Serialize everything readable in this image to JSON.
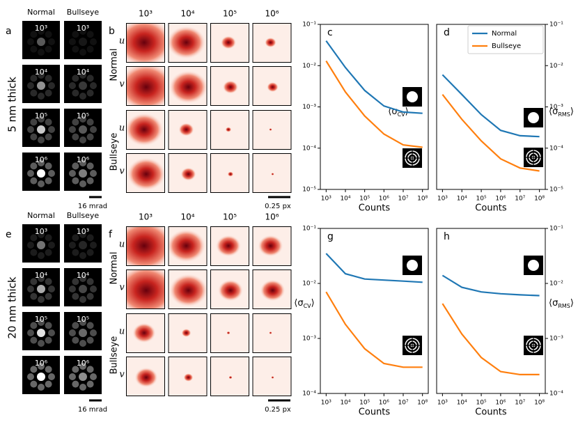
{
  "row_labels": [
    "5 nm thick",
    "20 nm thick"
  ],
  "image_panels": [
    {
      "letter": "a",
      "columns": [
        "Normal",
        "Bullseye"
      ],
      "counts": [
        "10³",
        "10⁴",
        "10⁵",
        "10⁶"
      ],
      "scale_bar": "16 mrad"
    },
    {
      "letter": "e",
      "columns": [
        "Normal",
        "Bullseye"
      ],
      "counts": [
        "10³",
        "10⁴",
        "10⁵",
        "10⁶"
      ],
      "scale_bar": "16 mrad"
    }
  ],
  "trajectory_panels": [
    {
      "letter": "b",
      "counts": [
        "10³",
        "10⁴",
        "10⁵",
        "10⁶"
      ],
      "groups": [
        "Normal",
        "Bullseye"
      ],
      "components": [
        "u",
        "v"
      ],
      "scale_bar": "0.25 px"
    },
    {
      "letter": "f",
      "counts": [
        "10³",
        "10⁴",
        "10⁵",
        "10⁶"
      ],
      "groups": [
        "Normal",
        "Bullseye"
      ],
      "components": [
        "u",
        "v"
      ],
      "scale_bar": "0.25 px"
    }
  ],
  "chart_data": [
    {
      "type": "line",
      "letter": "c",
      "xlabel": "Counts",
      "ylabel": [
        "⟨σ",
        "CV",
        "⟩"
      ],
      "xscale": "log",
      "yscale": "log",
      "x": [
        1000,
        10000,
        100000,
        1000000,
        10000000,
        100000000
      ],
      "xlim": [
        500,
        200000000
      ],
      "xticks": [
        {
          "value": 1000,
          "label": "10³"
        },
        {
          "value": 10000,
          "label": "10⁴"
        },
        {
          "value": 100000,
          "label": "10⁵"
        },
        {
          "value": 1000000,
          "label": "10⁶"
        },
        {
          "value": 10000000,
          "label": "10⁷"
        },
        {
          "value": 100000000,
          "label": "10⁸"
        }
      ],
      "ylim": [
        1e-05,
        0.1
      ],
      "yticks": [
        {
          "value": 1e-05,
          "label": "10⁻⁵"
        },
        {
          "value": 0.0001,
          "label": "10⁻⁴"
        },
        {
          "value": 0.001,
          "label": "10⁻³"
        },
        {
          "value": 0.01,
          "label": "10⁻²"
        },
        {
          "value": 0.1,
          "label": "10⁻¹"
        }
      ],
      "series": [
        {
          "name": "Normal",
          "color": "#1f77b4",
          "values": [
            0.04,
            0.009,
            0.0025,
            0.00105,
            0.00075,
            0.0007
          ]
        },
        {
          "name": "Bullseye",
          "color": "#ff7f0e",
          "values": [
            0.013,
            0.0023,
            0.0006,
            0.00022,
            0.00012,
            0.000105
          ]
        }
      ]
    },
    {
      "type": "line",
      "letter": "d",
      "xlabel": "Counts",
      "ylabel": [
        "⟨σ",
        "RMS",
        "⟩"
      ],
      "xscale": "log",
      "yscale": "log",
      "legend": "upper right",
      "x": [
        1000,
        10000,
        100000,
        1000000,
        10000000,
        100000000
      ],
      "xlim": [
        500,
        200000000
      ],
      "xticks": [
        {
          "value": 1000,
          "label": "10³"
        },
        {
          "value": 10000,
          "label": "10⁴"
        },
        {
          "value": 100000,
          "label": "10⁵"
        },
        {
          "value": 1000000,
          "label": "10⁶"
        },
        {
          "value": 10000000,
          "label": "10⁷"
        },
        {
          "value": 100000000,
          "label": "10⁸"
        }
      ],
      "ylim": [
        1e-05,
        0.1
      ],
      "yticks": [
        {
          "value": 1e-05,
          "label": "10⁻⁵"
        },
        {
          "value": 0.0001,
          "label": "10⁻⁴"
        },
        {
          "value": 0.001,
          "label": "10⁻³"
        },
        {
          "value": 0.01,
          "label": "10⁻²"
        },
        {
          "value": 0.1,
          "label": "10⁻¹"
        }
      ],
      "series": [
        {
          "name": "Normal",
          "color": "#1f77b4",
          "values": [
            0.006,
            0.002,
            0.00065,
            0.00027,
            0.0002,
            0.00019
          ]
        },
        {
          "name": "Bullseye",
          "color": "#ff7f0e",
          "values": [
            0.002,
            0.0005,
            0.00015,
            5.5e-05,
            3.3e-05,
            2.8e-05
          ]
        }
      ]
    },
    {
      "type": "line",
      "letter": "g",
      "xlabel": "Counts",
      "ylabel": [
        "⟨σ",
        "CV",
        "⟩"
      ],
      "xscale": "log",
      "yscale": "log",
      "x": [
        1000,
        10000,
        100000,
        1000000,
        10000000,
        100000000
      ],
      "xlim": [
        500,
        200000000
      ],
      "xticks": [
        {
          "value": 1000,
          "label": "10³"
        },
        {
          "value": 10000,
          "label": "10⁴"
        },
        {
          "value": 100000,
          "label": "10⁵"
        },
        {
          "value": 1000000,
          "label": "10⁶"
        },
        {
          "value": 10000000,
          "label": "10⁷"
        },
        {
          "value": 100000000,
          "label": "10⁸"
        }
      ],
      "ylim": [
        0.0001,
        0.1
      ],
      "yticks": [
        {
          "value": 0.0001,
          "label": "10⁻⁴"
        },
        {
          "value": 0.001,
          "label": "10⁻³"
        },
        {
          "value": 0.01,
          "label": "10⁻²"
        },
        {
          "value": 0.1,
          "label": "10⁻¹"
        }
      ],
      "series": [
        {
          "name": "Normal",
          "color": "#1f77b4",
          "values": [
            0.035,
            0.015,
            0.012,
            0.0115,
            0.011,
            0.0105
          ]
        },
        {
          "name": "Bullseye",
          "color": "#ff7f0e",
          "values": [
            0.007,
            0.0018,
            0.00065,
            0.00035,
            0.0003,
            0.0003
          ]
        }
      ]
    },
    {
      "type": "line",
      "letter": "h",
      "xlabel": "Counts",
      "ylabel": [
        "⟨σ",
        "RMS",
        "⟩"
      ],
      "xscale": "log",
      "yscale": "log",
      "x": [
        1000,
        10000,
        100000,
        1000000,
        10000000,
        100000000
      ],
      "xlim": [
        500,
        200000000
      ],
      "xticks": [
        {
          "value": 1000,
          "label": "10³"
        },
        {
          "value": 10000,
          "label": "10⁴"
        },
        {
          "value": 100000,
          "label": "10⁵"
        },
        {
          "value": 1000000,
          "label": "10⁶"
        },
        {
          "value": 10000000,
          "label": "10⁷"
        },
        {
          "value": 100000000,
          "label": "10⁸"
        }
      ],
      "ylim": [
        0.0001,
        0.1
      ],
      "yticks": [
        {
          "value": 0.0001,
          "label": "10⁻⁴"
        },
        {
          "value": 0.001,
          "label": "10⁻³"
        },
        {
          "value": 0.01,
          "label": "10⁻²"
        },
        {
          "value": 0.1,
          "label": "10⁻¹"
        }
      ],
      "series": [
        {
          "name": "Normal",
          "color": "#1f77b4",
          "values": [
            0.014,
            0.0085,
            0.007,
            0.0065,
            0.0062,
            0.006
          ]
        },
        {
          "name": "Bullseye",
          "color": "#ff7f0e",
          "values": [
            0.0043,
            0.0012,
            0.00045,
            0.00025,
            0.00022,
            0.00022
          ]
        }
      ]
    }
  ]
}
